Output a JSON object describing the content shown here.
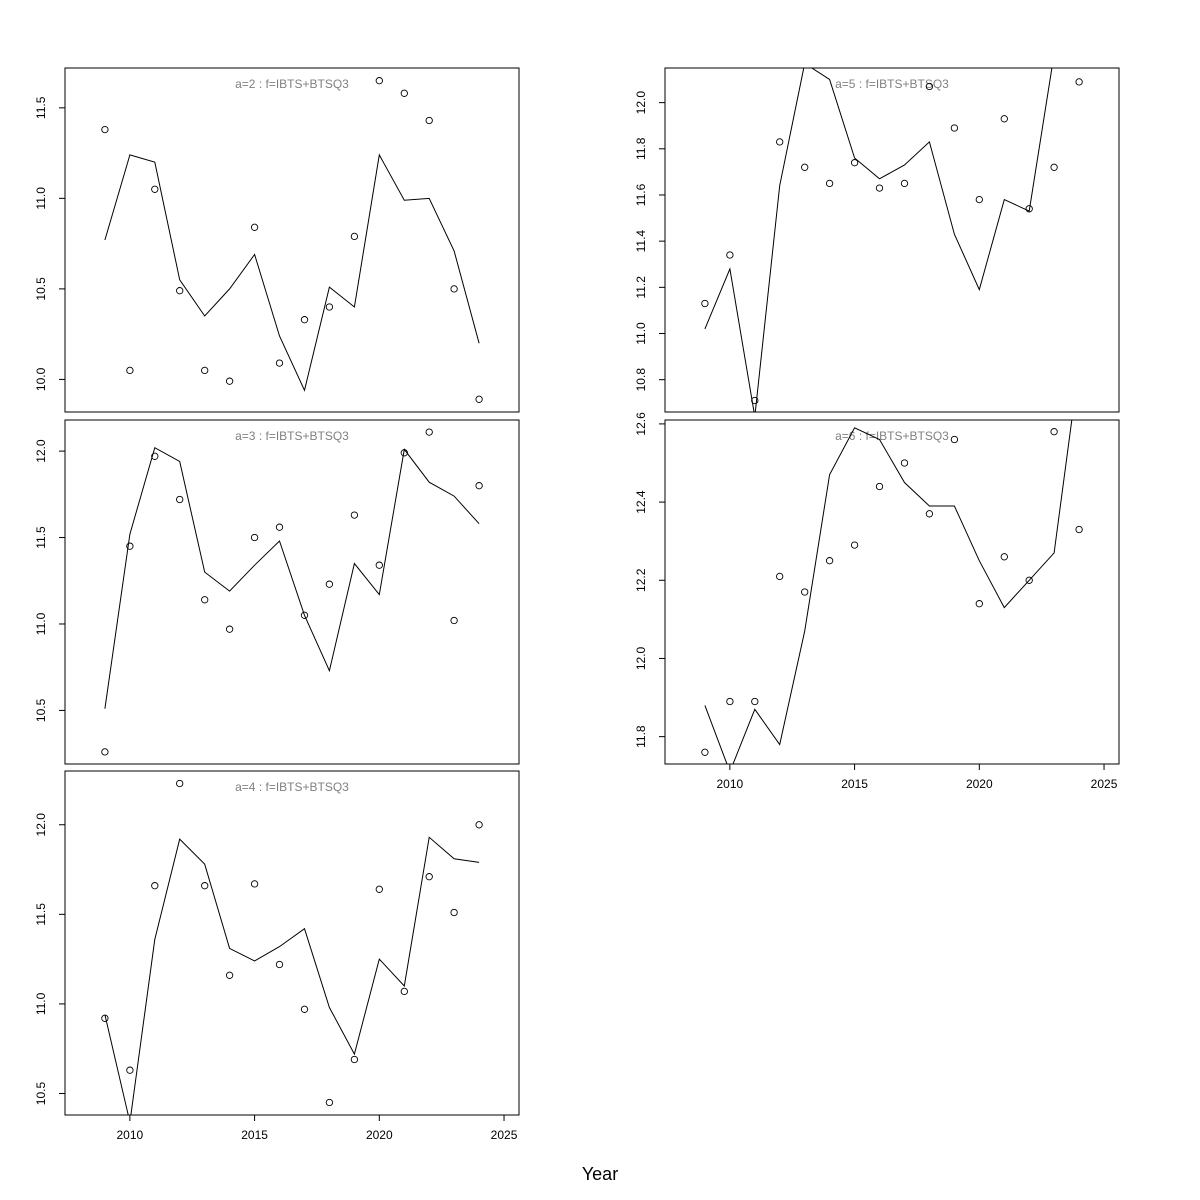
{
  "figure": {
    "xlabel": "Year"
  },
  "chart_data": [
    {
      "type": "line",
      "title": "a=2  :  f=IBTS+BTSQ3",
      "x": [
        2009,
        2010,
        2011,
        2012,
        2013,
        2014,
        2015,
        2016,
        2017,
        2018,
        2019,
        2020,
        2021,
        2022,
        2023,
        2024
      ],
      "series": [
        {
          "kind": "points",
          "values": [
            11.38,
            10.05,
            11.05,
            10.49,
            10.05,
            9.99,
            10.84,
            10.09,
            10.33,
            10.4,
            10.79,
            11.65,
            11.58,
            11.43,
            10.5,
            9.89
          ]
        },
        {
          "kind": "line",
          "values": [
            10.77,
            11.24,
            11.2,
            10.55,
            10.35,
            10.5,
            10.69,
            10.24,
            9.94,
            10.51,
            10.4,
            11.24,
            10.99,
            11.0,
            10.71,
            10.2
          ]
        }
      ],
      "xlim": [
        2007.4,
        2025.6
      ],
      "ylim": [
        9.82,
        11.72
      ],
      "yticks": [
        10.0,
        10.5,
        11.0,
        11.5
      ],
      "ytick_labels": [
        "10.0",
        "10.5",
        "11.0",
        "11.5"
      ]
    },
    {
      "type": "line",
      "title": "a=3  :  f=IBTS+BTSQ3",
      "x": [
        2009,
        2010,
        2011,
        2012,
        2013,
        2014,
        2015,
        2016,
        2017,
        2018,
        2019,
        2020,
        2021,
        2022,
        2023,
        2024
      ],
      "series": [
        {
          "kind": "points",
          "values": [
            10.26,
            11.45,
            11.97,
            11.72,
            11.14,
            10.97,
            11.5,
            11.56,
            11.05,
            11.23,
            11.63,
            11.34,
            11.99,
            12.11,
            11.02,
            11.8
          ]
        },
        {
          "kind": "line",
          "values": [
            10.51,
            11.52,
            12.02,
            11.94,
            11.3,
            11.19,
            11.34,
            11.48,
            11.05,
            10.73,
            11.35,
            11.17,
            12.01,
            11.82,
            11.74,
            11.58
          ]
        }
      ],
      "xlim": [
        2007.4,
        2025.6
      ],
      "ylim": [
        10.19,
        12.18
      ],
      "yticks": [
        10.5,
        11.0,
        11.5,
        12.0
      ],
      "ytick_labels": [
        "10.5",
        "11.0",
        "11.5",
        "12.0"
      ]
    },
    {
      "type": "line",
      "title": "a=4  :  f=IBTS+BTSQ3",
      "x": [
        2009,
        2010,
        2011,
        2012,
        2013,
        2014,
        2015,
        2016,
        2017,
        2018,
        2019,
        2020,
        2021,
        2022,
        2023,
        2024
      ],
      "series": [
        {
          "kind": "points",
          "values": [
            10.92,
            10.63,
            11.66,
            12.23,
            11.66,
            11.16,
            11.67,
            11.22,
            10.97,
            10.45,
            10.69,
            11.64,
            11.07,
            11.71,
            11.51,
            12.0
          ]
        },
        {
          "kind": "line",
          "values": [
            10.94,
            10.34,
            11.36,
            11.92,
            11.78,
            11.31,
            11.24,
            11.32,
            11.42,
            10.98,
            10.72,
            11.25,
            11.1,
            11.93,
            11.81,
            11.79
          ]
        }
      ],
      "xlim": [
        2007.4,
        2025.6
      ],
      "ylim": [
        10.38,
        12.3
      ],
      "yticks": [
        10.5,
        11.0,
        11.5,
        12.0
      ],
      "ytick_labels": [
        "10.5",
        "11.0",
        "11.5",
        "12.0"
      ]
    },
    {
      "type": "line",
      "title": "a=5  :  f=IBTS+BTSQ3",
      "x": [
        2009,
        2010,
        2011,
        2012,
        2013,
        2014,
        2015,
        2016,
        2017,
        2018,
        2019,
        2020,
        2021,
        2022,
        2023,
        2024
      ],
      "series": [
        {
          "kind": "points",
          "values": [
            11.13,
            11.34,
            10.71,
            11.83,
            11.72,
            11.65,
            11.74,
            11.63,
            11.65,
            12.07,
            11.89,
            11.58,
            11.93,
            11.54,
            11.72,
            12.09
          ]
        },
        {
          "kind": "line",
          "values": [
            11.02,
            11.28,
            10.64,
            11.64,
            12.17,
            12.1,
            11.76,
            11.67,
            11.73,
            11.83,
            11.43,
            11.19,
            11.58,
            11.53,
            12.21,
            12.3
          ]
        }
      ],
      "xlim": [
        2007.4,
        2025.6
      ],
      "ylim": [
        10.66,
        12.15
      ],
      "yticks": [
        10.8,
        11.0,
        11.2,
        11.4,
        11.6,
        11.8,
        12.0
      ],
      "ytick_labels": [
        "10.8",
        "11.0",
        "11.2",
        "11.4",
        "11.6",
        "11.8",
        "12.0"
      ]
    },
    {
      "type": "line",
      "title": "a=6  :  f=IBTS+BTSQ3",
      "x": [
        2009,
        2010,
        2011,
        2012,
        2013,
        2014,
        2015,
        2016,
        2017,
        2018,
        2019,
        2020,
        2021,
        2022,
        2023,
        2024
      ],
      "series": [
        {
          "kind": "points",
          "values": [
            11.76,
            11.89,
            11.89,
            12.21,
            12.17,
            12.25,
            12.29,
            12.44,
            12.5,
            12.37,
            12.56,
            12.14,
            12.26,
            12.2,
            12.58,
            12.33
          ]
        },
        {
          "kind": "line",
          "values": [
            11.88,
            11.71,
            11.87,
            11.78,
            12.07,
            12.47,
            12.59,
            12.56,
            12.45,
            12.39,
            12.39,
            12.25,
            12.13,
            12.2,
            12.27,
            12.75
          ]
        }
      ],
      "xlim": [
        2007.4,
        2025.6
      ],
      "ylim": [
        11.73,
        12.61
      ],
      "yticks": [
        11.8,
        12.0,
        12.2,
        12.4,
        12.6
      ],
      "ytick_labels": [
        "11.8",
        "12.0",
        "12.2",
        "12.4",
        "12.6"
      ]
    }
  ],
  "xaxis": {
    "ticks": [
      2010,
      2015,
      2020,
      2025
    ],
    "tick_labels": [
      "2010",
      "2015",
      "2020",
      "2025"
    ]
  }
}
